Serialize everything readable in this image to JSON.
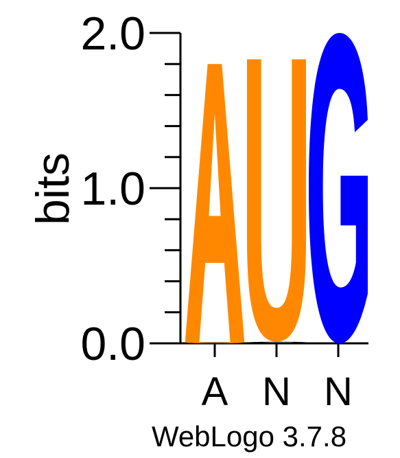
{
  "chart_data": {
    "type": "sequence-logo",
    "ylabel": "bits",
    "ylim": [
      0,
      2.0
    ],
    "yticks": [
      {
        "value": 0.0,
        "label": "0.0"
      },
      {
        "value": 1.0,
        "label": "1.0"
      },
      {
        "value": 2.0,
        "label": "2.0"
      }
    ],
    "y_minor_step": 0.2,
    "categories": [
      "A",
      "N",
      "N"
    ],
    "positions": [
      {
        "label": "A",
        "stacks": [
          {
            "letter": "U",
            "height": 0.02,
            "color": "#FF8800"
          },
          {
            "letter": "A",
            "height": 1.78,
            "color": "#FF8800"
          }
        ]
      },
      {
        "label": "N",
        "stacks": [
          {
            "letter": "G",
            "height": 0.01,
            "color": "#000000"
          },
          {
            "letter": "U",
            "height": 1.82,
            "color": "#FF8800"
          }
        ]
      },
      {
        "label": "N",
        "stacks": [
          {
            "letter": "G",
            "height": 2.0,
            "color": "#0000FF"
          }
        ]
      }
    ]
  },
  "footer": {
    "text": "WebLogo 3.7.8"
  },
  "colors": {
    "A": "#FF8800",
    "U": "#FF8800",
    "G": "#0000FF",
    "axis": "#000000"
  }
}
